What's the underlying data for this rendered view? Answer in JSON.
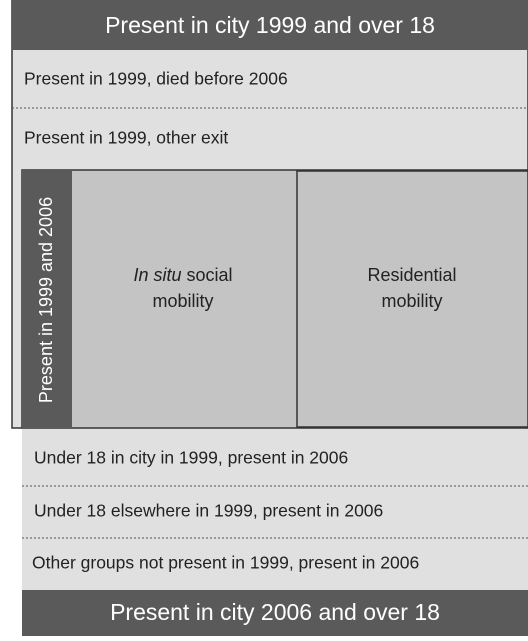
{
  "header": {
    "title": "Present in city 1999 and over 18"
  },
  "top_rows": [
    "Present in 1999, died before 2006",
    "Present in 1999, other exit"
  ],
  "center": {
    "side_label": "Present in 1999 and 2006",
    "social_mobility": {
      "italic": "In situ",
      "rest": "social",
      "line2": "mobility"
    },
    "residential_mobility": {
      "line1": "Residential",
      "line2": "mobility"
    }
  },
  "bottom_rows": [
    "Under 18 in city in 1999, present in 2006",
    "Under 18 elsewhere in 1999, present in 2006",
    "Other groups not present in 1999, present in 2006"
  ],
  "footer": {
    "title": "Present in city 2006 and over 18"
  }
}
